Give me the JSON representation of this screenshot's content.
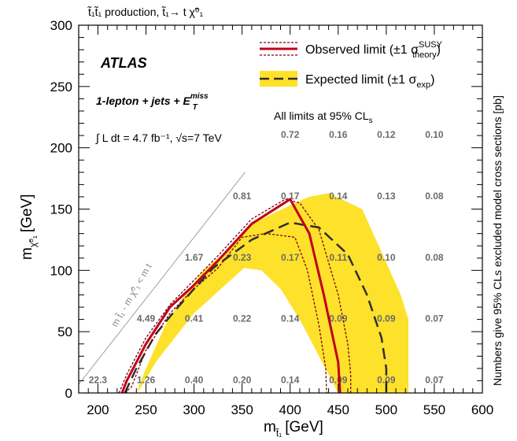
{
  "chart_data": {
    "type": "line",
    "top_label": "t̃₁t̃₁ production, t̃₁→ t χ̃⁰₁",
    "experiment": "ATLAS",
    "channel_label": "1-lepton + jets + E",
    "channel_label_sup": "miss",
    "channel_label_sub": "T",
    "lumi_label": "∫ L dt = 4.7 fb⁻¹, √s=7 TeV",
    "cls_note": "All limits at 95% CL",
    "cls_note_sub": "s",
    "xlabel": "m",
    "xlabel_sub": "t̃₁",
    "xlabel_unit": "[GeV]",
    "ylabel": "m",
    "ylabel_sub": "χ̃⁰₁",
    "ylabel_unit": "[GeV]",
    "right_label": "Numbers give 95% CLs excluded model cross sections [pb]",
    "diagonal_label": "m t̃₁ - m χ̃⁰₁ < m t",
    "xlim": [
      180,
      600
    ],
    "ylim": [
      0,
      300
    ],
    "xticks": [
      200,
      250,
      300,
      350,
      400,
      450,
      500,
      550,
      600
    ],
    "yticks": [
      0,
      50,
      100,
      150,
      200,
      250,
      300
    ],
    "legend": {
      "observed_label": "Observed limit (±1 σ",
      "observed_sup": "SUSY",
      "observed_sub": "theory",
      "observed_close": ")",
      "expected_label": "Expected limit (±1 σ",
      "expected_sub": "exp",
      "expected_close": ")"
    },
    "colors": {
      "observed": "#c0001a",
      "observed_band": "#7a0010",
      "expected": "#2f2f2f",
      "expected_band": "#fde12b",
      "cross_section_labels": "#6b6b6b"
    },
    "series": [
      {
        "name": "Observed limit",
        "x": [
          225,
          230,
          250,
          275,
          300,
          325,
          360,
          400,
          420,
          435,
          450,
          452
        ],
        "y": [
          0,
          10,
          40,
          70,
          88,
          108,
          138,
          158,
          130,
          80,
          25,
          0
        ]
      },
      {
        "name": "Observed +1σ",
        "x": [
          222,
          230,
          250,
          275,
          300,
          325,
          360,
          395,
          410,
          430,
          450,
          460,
          463,
          463
        ],
        "y": [
          0,
          15,
          45,
          72,
          92,
          112,
          142,
          158,
          155,
          133,
          80,
          40,
          15,
          0
        ]
      },
      {
        "name": "Observed -1σ",
        "x": [
          228,
          235,
          250,
          275,
          300,
          325,
          350,
          375,
          405,
          418,
          430,
          437,
          438
        ],
        "y": [
          0,
          5,
          35,
          65,
          85,
          102,
          127,
          130,
          127,
          100,
          55,
          20,
          0
        ]
      },
      {
        "name": "Expected limit",
        "x": [
          228,
          240,
          260,
          280,
          300,
          320,
          360,
          400,
          430,
          460,
          480,
          495,
          500,
          500
        ],
        "y": [
          0,
          20,
          48,
          67,
          85,
          102,
          125,
          139,
          135,
          113,
          80,
          45,
          20,
          0
        ]
      }
    ],
    "expected_band": {
      "x": [
        240,
        250,
        270,
        290,
        310,
        340,
        360,
        405,
        420,
        440,
        475,
        515,
        523,
        523,
        505,
        490,
        470,
        450,
        430,
        410,
        390,
        370,
        352,
        300,
        280,
        260,
        245,
        240
      ],
      "y": [
        0,
        20,
        55,
        80,
        100,
        120,
        138,
        155,
        160,
        163,
        150,
        80,
        60,
        0,
        0,
        0,
        0,
        0,
        30,
        60,
        85,
        100,
        102,
        65,
        45,
        25,
        5,
        0
      ]
    },
    "cross_section_labels": [
      {
        "x": 200,
        "y": 8,
        "text": "22.3"
      },
      {
        "x": 250,
        "y": 8,
        "text": "1.26"
      },
      {
        "x": 300,
        "y": 8,
        "text": "0.40"
      },
      {
        "x": 350,
        "y": 8,
        "text": "0.20"
      },
      {
        "x": 400,
        "y": 8,
        "text": "0.14"
      },
      {
        "x": 450,
        "y": 8,
        "text": "0.09"
      },
      {
        "x": 500,
        "y": 8,
        "text": "0.09"
      },
      {
        "x": 550,
        "y": 8,
        "text": "0.07"
      },
      {
        "x": 250,
        "y": 58,
        "text": "4.49"
      },
      {
        "x": 300,
        "y": 58,
        "text": "0.41"
      },
      {
        "x": 350,
        "y": 58,
        "text": "0.22"
      },
      {
        "x": 400,
        "y": 58,
        "text": "0.14"
      },
      {
        "x": 450,
        "y": 58,
        "text": "0.09"
      },
      {
        "x": 500,
        "y": 58,
        "text": "0.09"
      },
      {
        "x": 550,
        "y": 58,
        "text": "0.07"
      },
      {
        "x": 300,
        "y": 108,
        "text": "1.67"
      },
      {
        "x": 350,
        "y": 108,
        "text": "0.23"
      },
      {
        "x": 400,
        "y": 108,
        "text": "0.17"
      },
      {
        "x": 450,
        "y": 108,
        "text": "0.11"
      },
      {
        "x": 500,
        "y": 108,
        "text": "0.10"
      },
      {
        "x": 550,
        "y": 108,
        "text": "0.08"
      },
      {
        "x": 350,
        "y": 158,
        "text": "0.81"
      },
      {
        "x": 400,
        "y": 158,
        "text": "0.17"
      },
      {
        "x": 450,
        "y": 158,
        "text": "0.14"
      },
      {
        "x": 500,
        "y": 158,
        "text": "0.13"
      },
      {
        "x": 550,
        "y": 158,
        "text": "0.08"
      },
      {
        "x": 400,
        "y": 208,
        "text": "0.72"
      },
      {
        "x": 450,
        "y": 208,
        "text": "0.16"
      },
      {
        "x": 500,
        "y": 208,
        "text": "0.12"
      },
      {
        "x": 550,
        "y": 208,
        "text": "0.10"
      }
    ]
  }
}
